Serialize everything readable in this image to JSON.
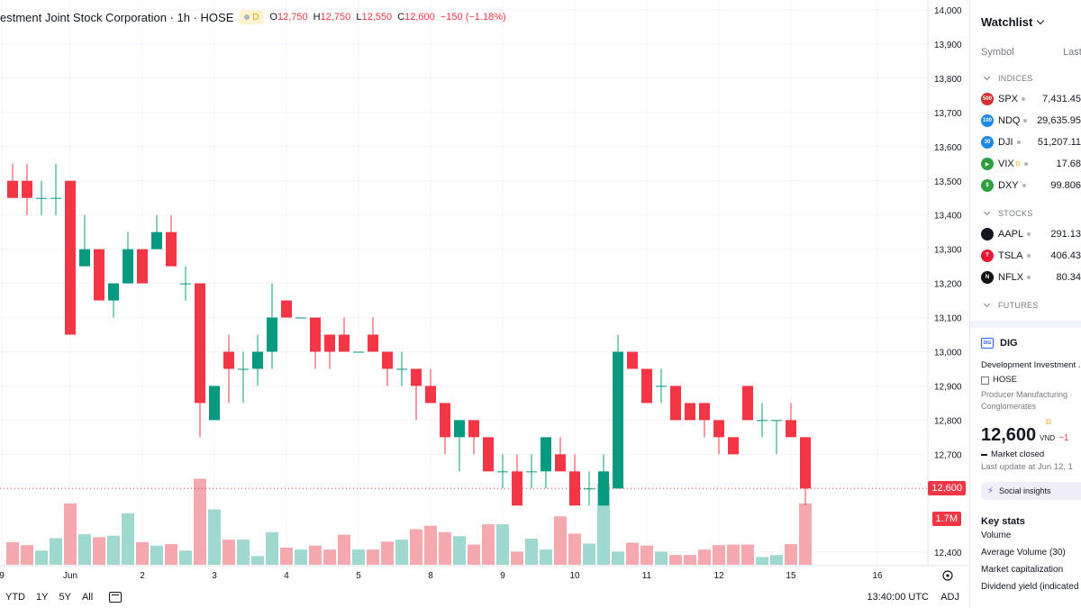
{
  "legend": {
    "title": "estment Joint Stock Corporation · 1h · HOSE",
    "badge_letter": "D",
    "open_label": "O",
    "open": "12,750",
    "high_label": "H",
    "high": "12,750",
    "low_label": "L",
    "low": "12,550",
    "close_label": "C",
    "close": "12,600",
    "change": "−150 (−1.18%)"
  },
  "price_tags": {
    "last": "12,600",
    "volume": "1.7M"
  },
  "bottom_bar": {
    "ranges": [
      "YTD",
      "1Y",
      "5Y",
      "All"
    ],
    "time": "13:40:00 UTC",
    "adj": "ADJ"
  },
  "watchlist": {
    "title": "Watchlist",
    "col_symbol": "Symbol",
    "col_last": "Last",
    "sections": [
      {
        "name": "INDICES",
        "items": [
          {
            "icon_text": "500",
            "icon_color": "#d32f2f",
            "symbol": "SPX",
            "last": "7,431.45",
            "delayed": false
          },
          {
            "icon_text": "100",
            "icon_color": "#1e88e5",
            "symbol": "NDQ",
            "last": "29,635.95",
            "delayed": false
          },
          {
            "icon_text": "30",
            "icon_color": "#1e88e5",
            "symbol": "DJI",
            "last": "51,207.11",
            "delayed": false
          },
          {
            "icon_text": "▶",
            "icon_color": "#2e9e3f",
            "symbol": "VIX",
            "last": "17.68",
            "delayed": true
          },
          {
            "icon_text": "$",
            "icon_color": "#2e9e3f",
            "symbol": "DXY",
            "last": "99.806",
            "delayed": false
          }
        ]
      },
      {
        "name": "STOCKS",
        "items": [
          {
            "icon_text": "",
            "icon_color": "#131722",
            "symbol": "AAPL",
            "last": "291.13",
            "delayed": false
          },
          {
            "icon_text": "T",
            "icon_color": "#e31937",
            "symbol": "TSLA",
            "last": "406.43",
            "delayed": false
          },
          {
            "icon_text": "N",
            "icon_color": "#111111",
            "symbol": "NFLX",
            "last": "80.34",
            "delayed": false
          }
        ]
      },
      {
        "name": "FUTURES",
        "items": []
      }
    ]
  },
  "details": {
    "symbol": "DIG",
    "logo_text": "DIG",
    "name": "Development Investment ...",
    "exchange": "HOSE",
    "category": "Producer Manufacturing · Conglomerates",
    "category_line1": "Producer Manufacturing ·",
    "category_line2": "Conglomerates",
    "price": "12,600",
    "price_delay": "D",
    "currency": "VND",
    "change": "−1",
    "status": "Market closed",
    "last_update": "Last update at Jun 12, 1",
    "social": "Social insights",
    "key_stats_title": "Key stats",
    "stats": [
      "Volume",
      "Average Volume (30)",
      "Market capitalization",
      "Dividend yield (indicated"
    ]
  },
  "chart_data": {
    "type": "candlestick",
    "y_axis_ticks": [
      14000,
      13900,
      13800,
      13700,
      13600,
      13500,
      13400,
      13300,
      13200,
      13100,
      13000,
      12900,
      12800,
      12700,
      12400
    ],
    "y_axis_labels": [
      "14,000",
      "13,900",
      "13,800",
      "13,700",
      "13,600",
      "13,500",
      "13,400",
      "13,300",
      "13,200",
      "13,100",
      "13,000",
      "12,900",
      "12,800",
      "12,700",
      "12,400"
    ],
    "ylim": [
      12400,
      14000
    ],
    "x_axis_labels": [
      "9",
      "Jun",
      "2",
      "3",
      "4",
      "5",
      "8",
      "9",
      "10",
      "11",
      "12",
      "15",
      "16"
    ],
    "last_price": 12600,
    "candles": [
      {
        "o": 13500,
        "h": 13550,
        "l": 13450,
        "c": 13450
      },
      {
        "o": 13500,
        "h": 13550,
        "l": 13400,
        "c": 13450
      },
      {
        "o": 13450,
        "h": 13500,
        "l": 13400,
        "c": 13450
      },
      {
        "o": 13450,
        "h": 13550,
        "l": 13400,
        "c": 13450
      },
      {
        "o": 13500,
        "h": 13500,
        "l": 13050,
        "c": 13050
      },
      {
        "o": 13250,
        "h": 13400,
        "l": 13250,
        "c": 13300
      },
      {
        "o": 13300,
        "h": 13300,
        "l": 13150,
        "c": 13150
      },
      {
        "o": 13150,
        "h": 13200,
        "l": 13100,
        "c": 13200
      },
      {
        "o": 13200,
        "h": 13350,
        "l": 13200,
        "c": 13300
      },
      {
        "o": 13300,
        "h": 13300,
        "l": 13200,
        "c": 13200
      },
      {
        "o": 13300,
        "h": 13400,
        "l": 13300,
        "c": 13350
      },
      {
        "o": 13350,
        "h": 13400,
        "l": 13250,
        "c": 13250
      },
      {
        "o": 13200,
        "h": 13250,
        "l": 13150,
        "c": 13200
      },
      {
        "o": 13200,
        "h": 13200,
        "l": 12750,
        "c": 12850
      },
      {
        "o": 12800,
        "h": 12900,
        "l": 12800,
        "c": 12900
      },
      {
        "o": 13000,
        "h": 13050,
        "l": 12850,
        "c": 12950
      },
      {
        "o": 12950,
        "h": 13000,
        "l": 12850,
        "c": 12950
      },
      {
        "o": 12950,
        "h": 13050,
        "l": 12900,
        "c": 13000
      },
      {
        "o": 13000,
        "h": 13200,
        "l": 12950,
        "c": 13100
      },
      {
        "o": 13150,
        "h": 13150,
        "l": 13100,
        "c": 13100
      },
      {
        "o": 13100,
        "h": 13100,
        "l": 13100,
        "c": 13100
      },
      {
        "o": 13100,
        "h": 13100,
        "l": 12950,
        "c": 13000
      },
      {
        "o": 13050,
        "h": 13050,
        "l": 12950,
        "c": 13000
      },
      {
        "o": 13050,
        "h": 13100,
        "l": 13000,
        "c": 13000
      },
      {
        "o": 13000,
        "h": 13000,
        "l": 13000,
        "c": 13000
      },
      {
        "o": 13050,
        "h": 13100,
        "l": 13000,
        "c": 13000
      },
      {
        "o": 13000,
        "h": 13000,
        "l": 12900,
        "c": 12950
      },
      {
        "o": 12950,
        "h": 13000,
        "l": 12900,
        "c": 12950
      },
      {
        "o": 12950,
        "h": 12950,
        "l": 12800,
        "c": 12900
      },
      {
        "o": 12900,
        "h": 12950,
        "l": 12850,
        "c": 12850
      },
      {
        "o": 12850,
        "h": 12850,
        "l": 12700,
        "c": 12750
      },
      {
        "o": 12750,
        "h": 12800,
        "l": 12650,
        "c": 12800
      },
      {
        "o": 12800,
        "h": 12800,
        "l": 12700,
        "c": 12750
      },
      {
        "o": 12750,
        "h": 12750,
        "l": 12650,
        "c": 12650
      },
      {
        "o": 12650,
        "h": 12700,
        "l": 12600,
        "c": 12650
      },
      {
        "o": 12650,
        "h": 12700,
        "l": 12550,
        "c": 12550
      },
      {
        "o": 12650,
        "h": 12700,
        "l": 12600,
        "c": 12650
      },
      {
        "o": 12650,
        "h": 12750,
        "l": 12600,
        "c": 12750
      },
      {
        "o": 12700,
        "h": 12750,
        "l": 12650,
        "c": 12650
      },
      {
        "o": 12650,
        "h": 12700,
        "l": 12550,
        "c": 12550
      },
      {
        "o": 12600,
        "h": 12650,
        "l": 12550,
        "c": 12600
      },
      {
        "o": 12550,
        "h": 12700,
        "l": 12550,
        "c": 12650
      },
      {
        "o": 12600,
        "h": 13050,
        "l": 12600,
        "c": 13000
      },
      {
        "o": 13000,
        "h": 13000,
        "l": 12950,
        "c": 12950
      },
      {
        "o": 12950,
        "h": 12950,
        "l": 12850,
        "c": 12850
      },
      {
        "o": 12900,
        "h": 12950,
        "l": 12850,
        "c": 12900
      },
      {
        "o": 12900,
        "h": 12900,
        "l": 12800,
        "c": 12800
      },
      {
        "o": 12850,
        "h": 12850,
        "l": 12800,
        "c": 12800
      },
      {
        "o": 12850,
        "h": 12850,
        "l": 12750,
        "c": 12800
      },
      {
        "o": 12800,
        "h": 12800,
        "l": 12700,
        "c": 12750
      },
      {
        "o": 12750,
        "h": 12750,
        "l": 12700,
        "c": 12700
      },
      {
        "o": 12900,
        "h": 12900,
        "l": 12800,
        "c": 12800
      },
      {
        "o": 12800,
        "h": 12850,
        "l": 12750,
        "c": 12800
      },
      {
        "o": 12800,
        "h": 12800,
        "l": 12700,
        "c": 12800
      },
      {
        "o": 12800,
        "h": 12850,
        "l": 12750,
        "c": 12750
      },
      {
        "o": 12750,
        "h": 12750,
        "l": 12550,
        "c": 12600
      }
    ],
    "volume_scale": 1.7,
    "volumes": [
      0.42,
      0.36,
      0.25,
      0.5,
      1.2,
      0.58,
      0.52,
      0.55,
      1.0,
      0.42,
      0.35,
      0.38,
      0.25,
      1.7,
      1.08,
      0.47,
      0.47,
      0.14,
      0.62,
      0.31,
      0.27,
      0.35,
      0.27,
      0.57,
      0.27,
      0.27,
      0.43,
      0.47,
      0.68,
      0.75,
      0.62,
      0.54,
      0.37,
      0.78,
      0.78,
      0.23,
      0.49,
      0.27,
      0.94,
      0.59,
      0.39,
      1.6,
      0.23,
      0.41,
      0.35,
      0.23,
      0.16,
      0.16,
      0.27,
      0.36,
      0.37,
      0.37,
      0.12,
      0.16,
      0.38,
      1.2
    ]
  }
}
